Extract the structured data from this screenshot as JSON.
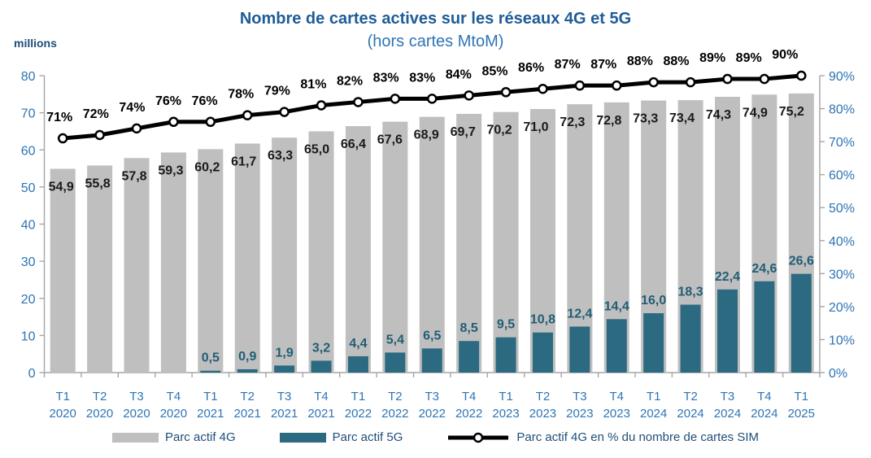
{
  "header": {
    "title": "Nombre de cartes actives sur les réseaux 4G et 5G",
    "subtitle": "(hors cartes MtoM)",
    "left_axis_unit": "millions"
  },
  "colors": {
    "bar_4g": "#BFBFBF",
    "bar_5g": "#2B6A80",
    "line": "#000000",
    "marker_fill": "#FFFFFF",
    "axis_text": "#2E74B5",
    "axis_line": "#A6A6A6",
    "title": "#1F5C98",
    "subtitle": "#2E75B6",
    "unit_text": "#1F4E79",
    "label_4g": "#1A1A1A",
    "label_5g": "#215E74",
    "label_pct": "#000000",
    "legend_text": "#1F4E79"
  },
  "chart_data": {
    "type": "bar",
    "categories": [
      {
        "quarter": "T1",
        "year": "2020"
      },
      {
        "quarter": "T2",
        "year": "2020"
      },
      {
        "quarter": "T3",
        "year": "2020"
      },
      {
        "quarter": "T4",
        "year": "2020"
      },
      {
        "quarter": "T1",
        "year": "2021"
      },
      {
        "quarter": "T2",
        "year": "2021"
      },
      {
        "quarter": "T3",
        "year": "2021"
      },
      {
        "quarter": "T4",
        "year": "2021"
      },
      {
        "quarter": "T1",
        "year": "2022"
      },
      {
        "quarter": "T2",
        "year": "2022"
      },
      {
        "quarter": "T3",
        "year": "2022"
      },
      {
        "quarter": "T4",
        "year": "2022"
      },
      {
        "quarter": "T1",
        "year": "2023"
      },
      {
        "quarter": "T2",
        "year": "2023"
      },
      {
        "quarter": "T3",
        "year": "2023"
      },
      {
        "quarter": "T4",
        "year": "2023"
      },
      {
        "quarter": "T1",
        "year": "2024"
      },
      {
        "quarter": "T2",
        "year": "2024"
      },
      {
        "quarter": "T3",
        "year": "2024"
      },
      {
        "quarter": "T4",
        "year": "2024"
      },
      {
        "quarter": "T1",
        "year": "2025"
      }
    ],
    "series": [
      {
        "name": "Parc actif 4G",
        "type": "bar",
        "axis": "left",
        "values": [
          54.9,
          55.8,
          57.8,
          59.3,
          60.2,
          61.7,
          63.3,
          65.0,
          66.4,
          67.6,
          68.9,
          69.7,
          70.2,
          71.0,
          72.3,
          72.8,
          73.3,
          73.4,
          74.3,
          74.9,
          75.2
        ]
      },
      {
        "name": "Parc actif 5G",
        "type": "bar",
        "axis": "left",
        "values": [
          null,
          null,
          null,
          null,
          0.5,
          0.9,
          1.9,
          3.2,
          4.4,
          5.4,
          6.5,
          8.5,
          9.5,
          10.8,
          12.4,
          14.4,
          16.0,
          18.3,
          22.4,
          24.6,
          26.6
        ]
      },
      {
        "name": "Parc actif 4G en % du nombre de cartes SIM",
        "type": "line",
        "axis": "right",
        "values": [
          71,
          72,
          74,
          76,
          76,
          78,
          79,
          81,
          82,
          83,
          83,
          84,
          85,
          86,
          87,
          87,
          88,
          88,
          89,
          89,
          90
        ]
      }
    ],
    "left_axis": {
      "min": 0,
      "max": 80,
      "step": 10,
      "unit": "millions"
    },
    "right_axis": {
      "min": 0,
      "max": 90,
      "step": 10,
      "suffix": "%"
    },
    "grid": false,
    "legend_position": "bottom"
  },
  "legend": {
    "items": [
      {
        "label": "Parc actif 4G"
      },
      {
        "label": "Parc actif 5G"
      },
      {
        "label": "Parc actif 4G en % du nombre de cartes SIM"
      }
    ]
  }
}
